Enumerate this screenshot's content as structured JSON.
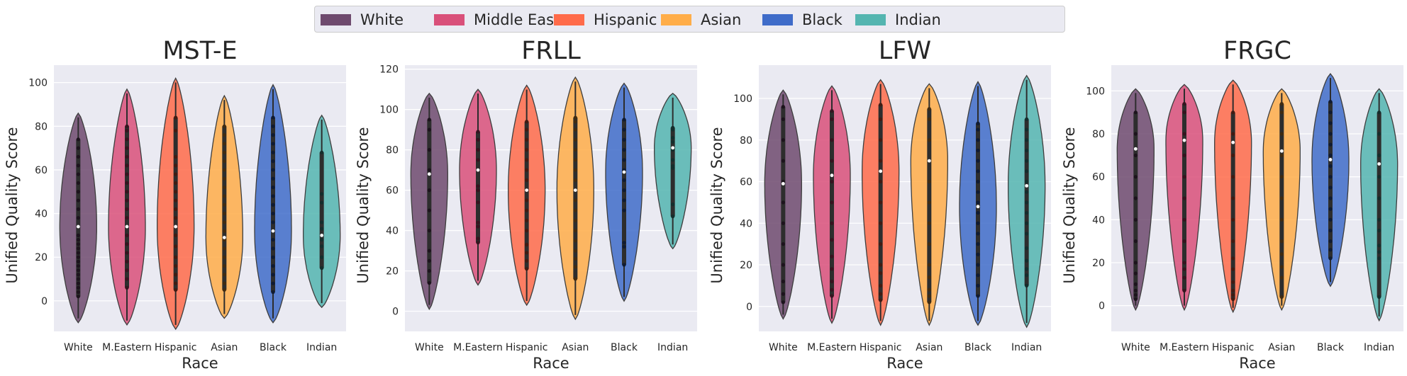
{
  "legend": {
    "items": [
      {
        "label": "White",
        "color": "#6e4a6e"
      },
      {
        "label": "Middle Eastern",
        "color": "#d9507a"
      },
      {
        "label": "Hispanic",
        "color": "#ff6b4a"
      },
      {
        "label": "Asian",
        "color": "#ffad49"
      },
      {
        "label": "Black",
        "color": "#3f6cc9"
      },
      {
        "label": "Indian",
        "color": "#54b5b0"
      }
    ]
  },
  "chart_data": [
    {
      "type": "violin",
      "title": "MST-E",
      "xlabel": "Race",
      "ylabel": "Unified Quality Score",
      "categories": [
        "White",
        "M.Eastern",
        "Hispanic",
        "Asian",
        "Black",
        "Indian"
      ],
      "yticks": [
        0,
        20,
        40,
        60,
        80,
        100
      ],
      "ylim": [
        -14,
        108
      ],
      "grid": true,
      "violins": [
        {
          "min": -10,
          "max": 86,
          "median": 34,
          "points": [
            2,
            4,
            6,
            8,
            10,
            12,
            14,
            16,
            18,
            20,
            22,
            24,
            26,
            28,
            30,
            34,
            38,
            42,
            46,
            50,
            54,
            58,
            62,
            66,
            70,
            74
          ]
        },
        {
          "min": -11,
          "max": 97,
          "median": 34,
          "points": [
            6,
            10,
            14,
            18,
            22,
            26,
            30,
            34,
            38,
            42,
            46,
            50,
            54,
            58,
            62,
            66,
            70,
            74,
            78,
            80
          ]
        },
        {
          "min": -13,
          "max": 102,
          "median": 34,
          "points": [
            5,
            8,
            12,
            16,
            20,
            25,
            30,
            34,
            38,
            42,
            46,
            50,
            54,
            58,
            62,
            66,
            78,
            84
          ]
        },
        {
          "min": -8,
          "max": 94,
          "median": 29,
          "points": [
            5,
            8,
            12,
            16,
            20,
            24,
            28,
            32,
            36,
            40,
            44,
            48,
            52,
            56,
            60,
            64,
            68,
            72,
            76,
            80
          ]
        },
        {
          "min": -10,
          "max": 99,
          "median": 32,
          "points": [
            4,
            8,
            12,
            16,
            20,
            24,
            28,
            32,
            36,
            40,
            44,
            48,
            52,
            56,
            60,
            64,
            68,
            72,
            76,
            80,
            84
          ]
        },
        {
          "min": -3,
          "max": 85,
          "median": 30,
          "points": [
            15,
            20,
            25,
            28,
            30,
            33,
            36,
            45,
            49,
            68
          ]
        }
      ]
    },
    {
      "type": "violin",
      "title": "FRLL",
      "xlabel": "Race",
      "ylabel": "Unified Quality Score",
      "categories": [
        "White",
        "M.Eastern",
        "Hispanic",
        "Asian",
        "Black",
        "Indian"
      ],
      "yticks": [
        0,
        20,
        40,
        60,
        80,
        100,
        120
      ],
      "ylim": [
        -10,
        122
      ],
      "grid": true,
      "violins": [
        {
          "min": 1,
          "max": 108,
          "median": 68,
          "points": [
            14,
            20,
            25,
            30,
            40,
            50,
            60,
            70,
            80,
            90,
            95
          ]
        },
        {
          "min": 13,
          "max": 110,
          "median": 70,
          "points": [
            34,
            36,
            42,
            44,
            54,
            60,
            62,
            70,
            75,
            80,
            85,
            89
          ]
        },
        {
          "min": 3,
          "max": 112,
          "median": 60,
          "points": [
            21,
            25,
            29,
            33,
            40,
            45,
            50,
            55,
            60,
            65,
            70,
            75,
            80,
            85,
            90,
            94
          ]
        },
        {
          "min": -4,
          "max": 116,
          "median": 60,
          "points": [
            16,
            22,
            26,
            30,
            35,
            40,
            45,
            50,
            55,
            60,
            65,
            70,
            75,
            80,
            85,
            90,
            94,
            96
          ]
        },
        {
          "min": 5,
          "max": 113,
          "median": 69,
          "points": [
            23,
            32,
            34,
            50,
            55,
            60,
            65,
            70,
            75,
            80,
            85,
            90,
            95
          ]
        },
        {
          "min": 31,
          "max": 108,
          "median": 81,
          "points": [
            47,
            53,
            71,
            72,
            75,
            80,
            84,
            86,
            90,
            91
          ]
        }
      ]
    },
    {
      "type": "violin",
      "title": "LFW",
      "xlabel": "Race",
      "ylabel": "Unified Quality Score",
      "categories": [
        "White",
        "M.Eastern",
        "Hispanic",
        "Asian",
        "Black",
        "Indian"
      ],
      "yticks": [
        0,
        20,
        40,
        60,
        80,
        100
      ],
      "ylim": [
        -12,
        116
      ],
      "grid": true,
      "violins": [
        {
          "min": -6,
          "max": 104,
          "median": 59,
          "points": [
            2,
            6,
            12,
            20,
            30,
            40,
            50,
            60,
            70,
            80,
            90,
            96
          ]
        },
        {
          "min": -8,
          "max": 106,
          "median": 63,
          "points": [
            5,
            8,
            12,
            18,
            24,
            32,
            40,
            50,
            60,
            70,
            80,
            90,
            94
          ]
        },
        {
          "min": -9,
          "max": 109,
          "median": 65,
          "points": [
            3,
            6,
            10,
            16,
            20,
            30,
            40,
            50,
            60,
            70,
            80,
            90,
            97
          ]
        },
        {
          "min": -9,
          "max": 107,
          "median": 70,
          "points": [
            2,
            5,
            8,
            14,
            20,
            30,
            40,
            50,
            60,
            70,
            80,
            90,
            95
          ]
        },
        {
          "min": -9,
          "max": 108,
          "median": 48,
          "points": [
            5,
            10,
            15,
            20,
            25,
            30,
            35,
            40,
            45,
            50,
            55,
            60,
            65,
            70,
            75,
            80,
            85,
            88
          ]
        },
        {
          "min": -10,
          "max": 111,
          "median": 58,
          "points": [
            10,
            15,
            18,
            22,
            28,
            35,
            40,
            45,
            50,
            55,
            60,
            65,
            70,
            75,
            80,
            85,
            90
          ]
        }
      ]
    },
    {
      "type": "violin",
      "title": "FRGC",
      "xlabel": "Race",
      "ylabel": "Unified Quality Score",
      "categories": [
        "White",
        "M.Eastern",
        "Hispanic",
        "Asian",
        "Black",
        "Indian"
      ],
      "yticks": [
        0,
        20,
        40,
        60,
        80,
        100
      ],
      "ylim": [
        -12,
        112
      ],
      "grid": true,
      "violins": [
        {
          "min": -2,
          "max": 101,
          "median": 73,
          "points": [
            3,
            5,
            7,
            10,
            15,
            20,
            30,
            40,
            50,
            60,
            70,
            80,
            90
          ]
        },
        {
          "min": -2,
          "max": 103,
          "median": 77,
          "points": [
            7,
            13,
            17,
            20,
            30,
            40,
            50,
            60,
            70,
            80,
            90,
            94
          ]
        },
        {
          "min": -3,
          "max": 105,
          "median": 76,
          "points": [
            3,
            5,
            7,
            11,
            17,
            22,
            30,
            40,
            50,
            60,
            70,
            80,
            90
          ]
        },
        {
          "min": -2,
          "max": 101,
          "median": 72,
          "points": [
            4,
            13,
            18,
            24,
            30,
            40,
            50,
            60,
            70,
            80,
            90,
            94
          ]
        },
        {
          "min": 9,
          "max": 108,
          "median": 68,
          "points": [
            22,
            26,
            30,
            35,
            40,
            45,
            50,
            55,
            60,
            65,
            70,
            75,
            80,
            85,
            90,
            95
          ]
        },
        {
          "min": -7,
          "max": 101,
          "median": 66,
          "points": [
            4,
            22,
            25,
            28,
            35,
            40,
            50,
            60,
            70,
            80,
            90
          ]
        }
      ]
    }
  ]
}
